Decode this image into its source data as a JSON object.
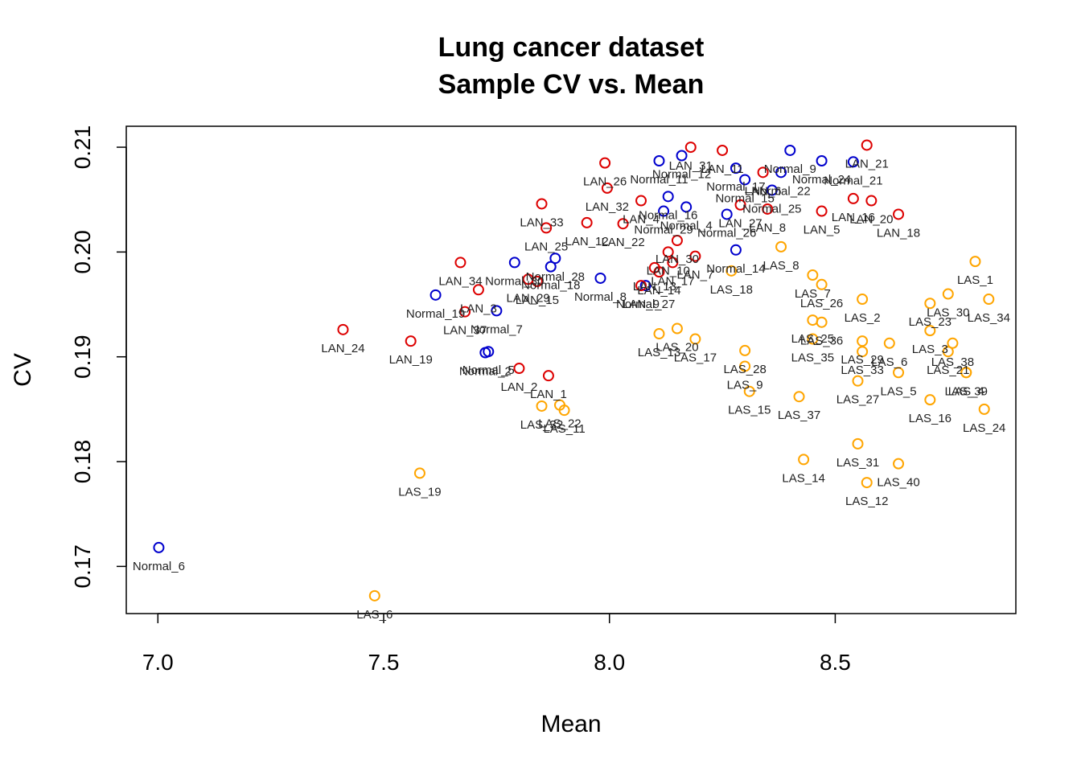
{
  "chart_data": {
    "type": "scatter",
    "title": "Lung cancer dataset",
    "subtitle": "Sample CV vs. Mean",
    "xlabel": "Mean",
    "ylabel": "CV",
    "xlim": [
      6.93,
      8.9
    ],
    "ylim": [
      0.1655,
      0.212
    ],
    "xticks": [
      7.0,
      7.5,
      8.0,
      8.5
    ],
    "xtick_labels": [
      "7.0",
      "7.5",
      "8.0",
      "8.5"
    ],
    "yticks": [
      0.17,
      0.18,
      0.19,
      0.2,
      0.21
    ],
    "ytick_labels": [
      "0.17",
      "0.18",
      "0.19",
      "0.20",
      "0.21"
    ],
    "grid": false,
    "legend": "none",
    "group_colors": {
      "Normal": "#0000CD",
      "LAN": "#DD0000",
      "LAS": "#FFA500"
    },
    "points": [
      {
        "label": "Normal_6",
        "x": 7.002,
        "y": 0.1718,
        "group": "Normal"
      },
      {
        "label": "Normal_19",
        "x": 7.615,
        "y": 0.1959,
        "group": "Normal"
      },
      {
        "label": "Normal_5",
        "x": 7.732,
        "y": 0.1905,
        "group": "Normal"
      },
      {
        "label": "Normal_2",
        "x": 7.725,
        "y": 0.1904,
        "group": "Normal"
      },
      {
        "label": "Normal_7",
        "x": 7.75,
        "y": 0.1944,
        "group": "Normal"
      },
      {
        "label": "Normal_30",
        "x": 7.79,
        "y": 0.199,
        "group": "Normal"
      },
      {
        "label": "Normal_28",
        "x": 7.88,
        "y": 0.1994,
        "group": "Normal"
      },
      {
        "label": "Normal_18",
        "x": 7.87,
        "y": 0.1986,
        "group": "Normal"
      },
      {
        "label": "Normal_8",
        "x": 7.98,
        "y": 0.1975,
        "group": "Normal"
      },
      {
        "label": "Normal_27",
        "x": 8.08,
        "y": 0.1968,
        "group": "Normal"
      },
      {
        "label": "Normal_11",
        "x": 8.11,
        "y": 0.2087,
        "group": "Normal"
      },
      {
        "label": "Normal_12",
        "x": 8.16,
        "y": 0.2092,
        "group": "Normal"
      },
      {
        "label": "Normal_16",
        "x": 8.13,
        "y": 0.2053,
        "group": "Normal"
      },
      {
        "label": "Normal_4",
        "x": 8.17,
        "y": 0.2043,
        "group": "Normal"
      },
      {
        "label": "Normal_29",
        "x": 8.12,
        "y": 0.2039,
        "group": "Normal"
      },
      {
        "label": "Normal_17",
        "x": 8.28,
        "y": 0.208,
        "group": "Normal"
      },
      {
        "label": "Normal_9",
        "x": 8.4,
        "y": 0.2097,
        "group": "Normal"
      },
      {
        "label": "Normal_24",
        "x": 8.47,
        "y": 0.2087,
        "group": "Normal"
      },
      {
        "label": "Normal_21",
        "x": 8.54,
        "y": 0.2086,
        "group": "Normal"
      },
      {
        "label": "Normal_15",
        "x": 8.3,
        "y": 0.2069,
        "group": "Normal"
      },
      {
        "label": "Normal_25",
        "x": 8.36,
        "y": 0.2059,
        "group": "Normal"
      },
      {
        "label": "Normal_22",
        "x": 8.38,
        "y": 0.2076,
        "group": "Normal"
      },
      {
        "label": "Normal_26",
        "x": 8.26,
        "y": 0.2036,
        "group": "Normal"
      },
      {
        "label": "Normal_14",
        "x": 8.28,
        "y": 0.2002,
        "group": "Normal"
      },
      {
        "label": "LAN_24",
        "x": 7.41,
        "y": 0.1926,
        "group": "LAN"
      },
      {
        "label": "LAN_19",
        "x": 7.56,
        "y": 0.1915,
        "group": "LAN"
      },
      {
        "label": "LAN_37",
        "x": 7.68,
        "y": 0.1943,
        "group": "LAN"
      },
      {
        "label": "LAN_34",
        "x": 7.67,
        "y": 0.199,
        "group": "LAN"
      },
      {
        "label": "LAN_3",
        "x": 7.71,
        "y": 0.1964,
        "group": "LAN"
      },
      {
        "label": "LAN_29",
        "x": 7.82,
        "y": 0.1974,
        "group": "LAN"
      },
      {
        "label": "LAN_15",
        "x": 7.84,
        "y": 0.1972,
        "group": "LAN"
      },
      {
        "label": "LAN_2",
        "x": 7.8,
        "y": 0.1889,
        "group": "LAN"
      },
      {
        "label": "LAN_1",
        "x": 7.865,
        "y": 0.1882,
        "group": "LAN"
      },
      {
        "label": "LAN_33",
        "x": 7.85,
        "y": 0.2046,
        "group": "LAN"
      },
      {
        "label": "LAN_25",
        "x": 7.86,
        "y": 0.2023,
        "group": "LAN"
      },
      {
        "label": "LAN_26",
        "x": 7.99,
        "y": 0.2085,
        "group": "LAN"
      },
      {
        "label": "LAN_32",
        "x": 7.995,
        "y": 0.2061,
        "group": "LAN"
      },
      {
        "label": "LAN_12",
        "x": 7.95,
        "y": 0.2028,
        "group": "LAN"
      },
      {
        "label": "LAN_22",
        "x": 8.03,
        "y": 0.2027,
        "group": "LAN"
      },
      {
        "label": "LAN_4",
        "x": 8.07,
        "y": 0.2049,
        "group": "LAN"
      },
      {
        "label": "LAN_30",
        "x": 8.15,
        "y": 0.2011,
        "group": "LAN"
      },
      {
        "label": "LAN_13",
        "x": 8.1,
        "y": 0.1985,
        "group": "LAN"
      },
      {
        "label": "LAN_17",
        "x": 8.14,
        "y": 0.199,
        "group": "LAN"
      },
      {
        "label": "LAN_14",
        "x": 8.11,
        "y": 0.1981,
        "group": "LAN"
      },
      {
        "label": "LAN_7",
        "x": 8.19,
        "y": 0.1996,
        "group": "LAN"
      },
      {
        "label": "LAN_9",
        "x": 8.07,
        "y": 0.1968,
        "group": "LAN"
      },
      {
        "label": "LAN_10",
        "x": 8.13,
        "y": 0.2,
        "group": "LAN"
      },
      {
        "label": "LAN_31",
        "x": 8.18,
        "y": 0.21,
        "group": "LAN"
      },
      {
        "label": "LAN_11",
        "x": 8.25,
        "y": 0.2097,
        "group": "LAN"
      },
      {
        "label": "LAN_27",
        "x": 8.29,
        "y": 0.2045,
        "group": "LAN"
      },
      {
        "label": "LAN_8",
        "x": 8.35,
        "y": 0.2041,
        "group": "LAN"
      },
      {
        "label": "LAN_5",
        "x": 8.47,
        "y": 0.2039,
        "group": "LAN"
      },
      {
        "label": "LAN_16",
        "x": 8.54,
        "y": 0.2051,
        "group": "LAN"
      },
      {
        "label": "LAN_20",
        "x": 8.58,
        "y": 0.2049,
        "group": "LAN"
      },
      {
        "label": "LAN_21",
        "x": 8.57,
        "y": 0.2102,
        "group": "LAN"
      },
      {
        "label": "LAN_18",
        "x": 8.64,
        "y": 0.2036,
        "group": "LAN"
      },
      {
        "label": "LAN_6",
        "x": 8.34,
        "y": 0.2076,
        "group": "LAN"
      },
      {
        "label": "LAS_19",
        "x": 7.58,
        "y": 0.1789,
        "group": "LAS"
      },
      {
        "label": "LAS_6",
        "x": 7.48,
        "y": 0.1672,
        "group": "LAS"
      },
      {
        "label": "LAS_32",
        "x": 7.85,
        "y": 0.1853,
        "group": "LAS"
      },
      {
        "label": "LAS_22",
        "x": 7.89,
        "y": 0.1854,
        "group": "LAS"
      },
      {
        "label": "LAS_11",
        "x": 7.9,
        "y": 0.1849,
        "group": "LAS"
      },
      {
        "label": "LAS_13",
        "x": 8.11,
        "y": 0.1922,
        "group": "LAS"
      },
      {
        "label": "LAS_20",
        "x": 8.15,
        "y": 0.1927,
        "group": "LAS"
      },
      {
        "label": "LAS_17",
        "x": 8.19,
        "y": 0.1917,
        "group": "LAS"
      },
      {
        "label": "LAS_28",
        "x": 8.3,
        "y": 0.1906,
        "group": "LAS"
      },
      {
        "label": "LAS_9",
        "x": 8.3,
        "y": 0.1891,
        "group": "LAS"
      },
      {
        "label": "LAS_15",
        "x": 8.31,
        "y": 0.1867,
        "group": "LAS"
      },
      {
        "label": "LAS_18",
        "x": 8.27,
        "y": 0.1982,
        "group": "LAS"
      },
      {
        "label": "LAS_8",
        "x": 8.38,
        "y": 0.2005,
        "group": "LAS"
      },
      {
        "label": "LAS_7",
        "x": 8.45,
        "y": 0.1978,
        "group": "LAS"
      },
      {
        "label": "LAS_26",
        "x": 8.47,
        "y": 0.1969,
        "group": "LAS"
      },
      {
        "label": "LAS_25",
        "x": 8.45,
        "y": 0.1935,
        "group": "LAS"
      },
      {
        "label": "LAS_36",
        "x": 8.47,
        "y": 0.1933,
        "group": "LAS"
      },
      {
        "label": "LAS_35",
        "x": 8.45,
        "y": 0.1917,
        "group": "LAS"
      },
      {
        "label": "LAS_37",
        "x": 8.42,
        "y": 0.1862,
        "group": "LAS"
      },
      {
        "label": "LAS_14",
        "x": 8.43,
        "y": 0.1802,
        "group": "LAS"
      },
      {
        "label": "LAS_2",
        "x": 8.56,
        "y": 0.1955,
        "group": "LAS"
      },
      {
        "label": "LAS_29",
        "x": 8.56,
        "y": 0.1915,
        "group": "LAS"
      },
      {
        "label": "LAS_33",
        "x": 8.56,
        "y": 0.1905,
        "group": "LAS"
      },
      {
        "label": "LAS_6",
        "x": 8.62,
        "y": 0.1913,
        "group": "LAS"
      },
      {
        "label": "LAS_27",
        "x": 8.55,
        "y": 0.1877,
        "group": "LAS"
      },
      {
        "label": "LAS_5",
        "x": 8.64,
        "y": 0.1885,
        "group": "LAS"
      },
      {
        "label": "LAS_31",
        "x": 8.55,
        "y": 0.1817,
        "group": "LAS"
      },
      {
        "label": "LAS_12",
        "x": 8.57,
        "y": 0.178,
        "group": "LAS"
      },
      {
        "label": "LAS_40",
        "x": 8.64,
        "y": 0.1798,
        "group": "LAS"
      },
      {
        "label": "LAS_1",
        "x": 8.81,
        "y": 0.1991,
        "group": "LAS"
      },
      {
        "label": "LAS_30",
        "x": 8.75,
        "y": 0.196,
        "group": "LAS"
      },
      {
        "label": "LAS_34",
        "x": 8.84,
        "y": 0.1955,
        "group": "LAS"
      },
      {
        "label": "LAS_23",
        "x": 8.71,
        "y": 0.1951,
        "group": "LAS"
      },
      {
        "label": "LAS_3",
        "x": 8.71,
        "y": 0.1925,
        "group": "LAS"
      },
      {
        "label": "LAS_38",
        "x": 8.76,
        "y": 0.1913,
        "group": "LAS"
      },
      {
        "label": "LAS_21",
        "x": 8.75,
        "y": 0.1905,
        "group": "LAS"
      },
      {
        "label": "LAS_4",
        "x": 8.79,
        "y": 0.1885,
        "group": "LAS"
      },
      {
        "label": "LAS_39",
        "x": 8.79,
        "y": 0.1885,
        "group": "LAS"
      },
      {
        "label": "LAS_16",
        "x": 8.71,
        "y": 0.1859,
        "group": "LAS"
      },
      {
        "label": "LAS_24",
        "x": 8.83,
        "y": 0.185,
        "group": "LAS"
      }
    ]
  }
}
